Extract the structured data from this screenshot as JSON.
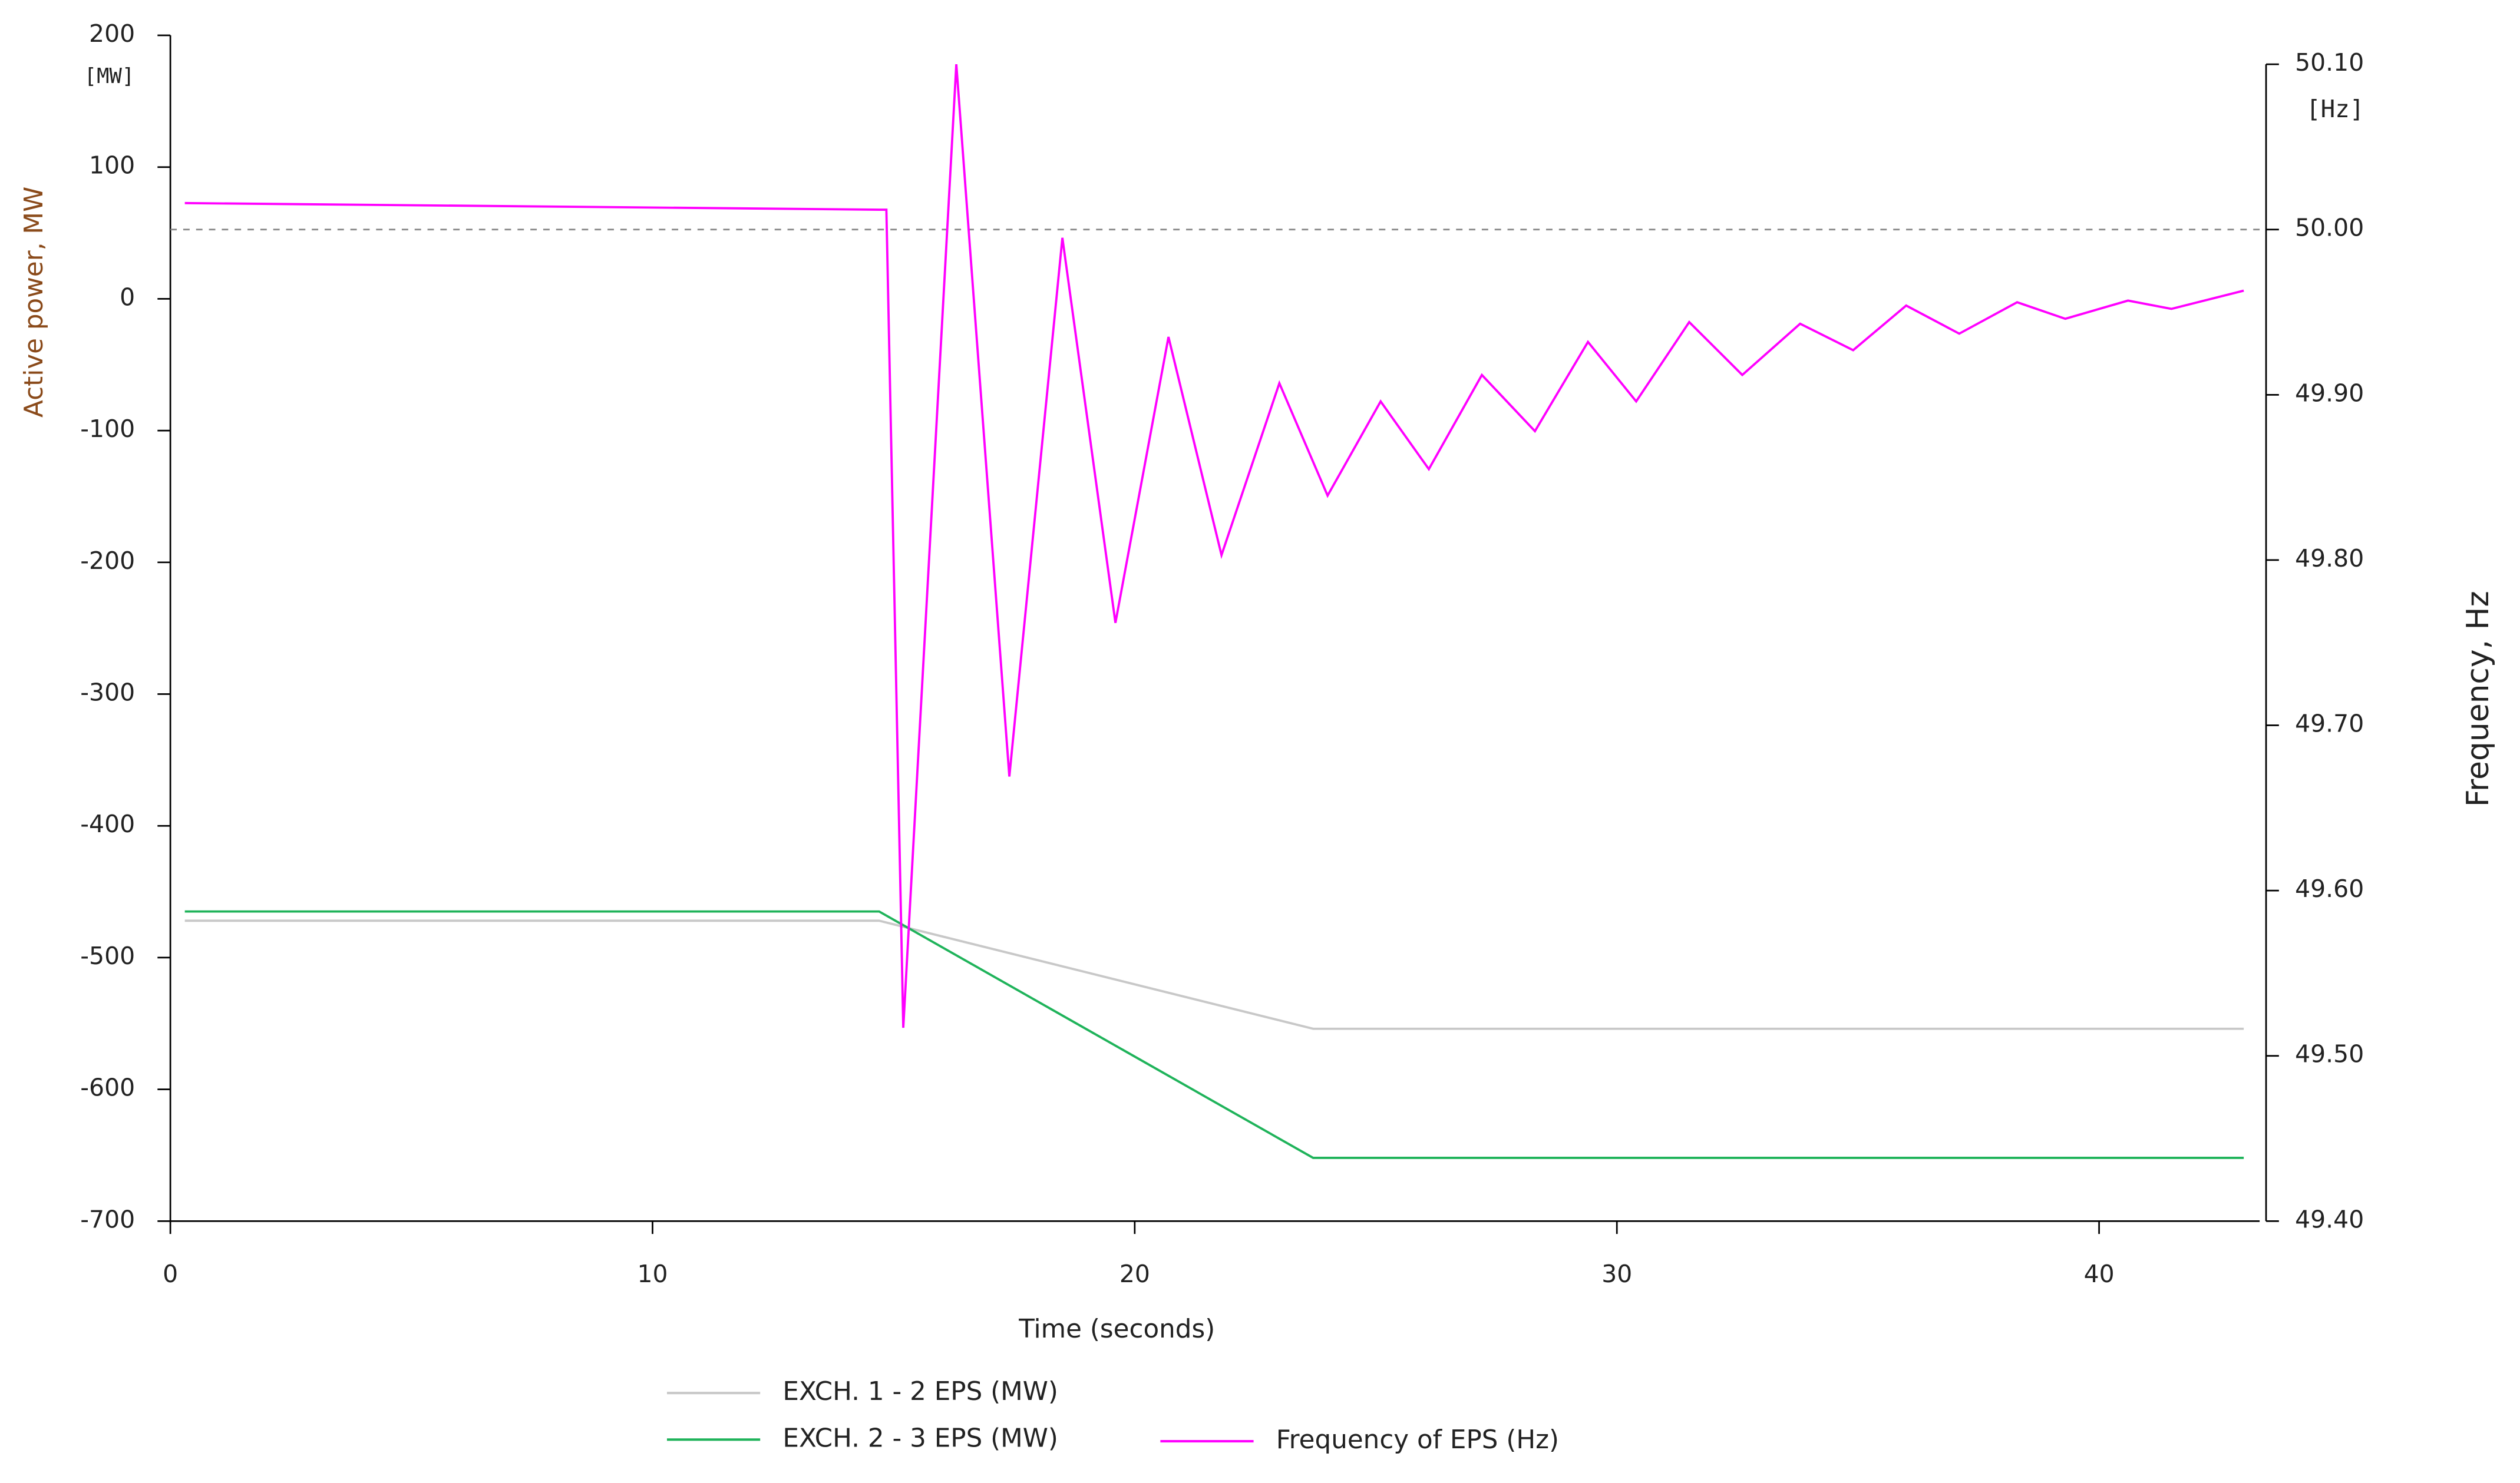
{
  "chart_data": {
    "type": "line",
    "x_label": "Time (seconds)",
    "y_label": "Active power, MW",
    "y2_label": "Frequency, Hz",
    "y_unit": "[MW]",
    "y2_unit": "[Hz]",
    "xlim": [
      0,
      43.33
    ],
    "xticks": [
      0,
      10,
      20,
      30,
      40
    ],
    "ylim": [
      -700,
      200
    ],
    "yticks": [
      -700,
      -600,
      -500,
      -400,
      -300,
      -200,
      -100,
      0,
      100,
      200
    ],
    "y2lim": [
      49.4,
      50.1
    ],
    "y2ticks": [
      {
        "value": 49.4,
        "label": "49.40"
      },
      {
        "value": 49.5,
        "label": "49.50"
      },
      {
        "value": 49.6,
        "label": "49.60"
      },
      {
        "value": 49.7,
        "label": "49.70"
      },
      {
        "value": 49.8,
        "label": "49.80"
      },
      {
        "value": 49.9,
        "label": "49.90"
      },
      {
        "value": 50,
        "label": "50.00"
      },
      {
        "value": 50.1,
        "label": "50.10"
      }
    ],
    "y2_reference_line": 50,
    "series": [
      {
        "name": "EXCH. 1 - 2 EPS (MW)",
        "color": "#c8c8c8",
        "x": [
          0.3,
          14.7,
          23.7,
          43
        ],
        "values": [
          -472,
          -472,
          -554,
          -554
        ]
      },
      {
        "name": "EXCH. 2 - 3 EPS (MW)",
        "color": "#1fb35a",
        "x": [
          0.3,
          14.7,
          23.7,
          43
        ],
        "values": [
          -465,
          -465,
          -652,
          -652
        ]
      },
      {
        "name": "Frequency of EPS (Hz)",
        "color": "#ff00ff",
        "axis": "y2",
        "x": [
          0.3,
          14.7,
          14.85,
          15.2,
          16.3,
          17.4,
          18.5,
          19.6,
          20.7,
          21.8,
          23,
          24,
          25.1,
          26.1,
          27.2,
          28.3,
          29.4,
          30.4,
          31.5,
          32.6,
          33.8,
          34.9,
          36,
          37.1,
          38.3,
          39.3,
          40.6,
          41.5,
          43
        ],
        "values": [
          50.016,
          50.012,
          50.012,
          49.517,
          50.1,
          49.669,
          49.995,
          49.762,
          49.935,
          49.803,
          49.907,
          49.839,
          49.896,
          49.855,
          49.912,
          49.878,
          49.932,
          49.896,
          49.944,
          49.912,
          49.943,
          49.927,
          49.954,
          49.937,
          49.956,
          49.946,
          49.957,
          49.952,
          49.963
        ]
      }
    ]
  }
}
